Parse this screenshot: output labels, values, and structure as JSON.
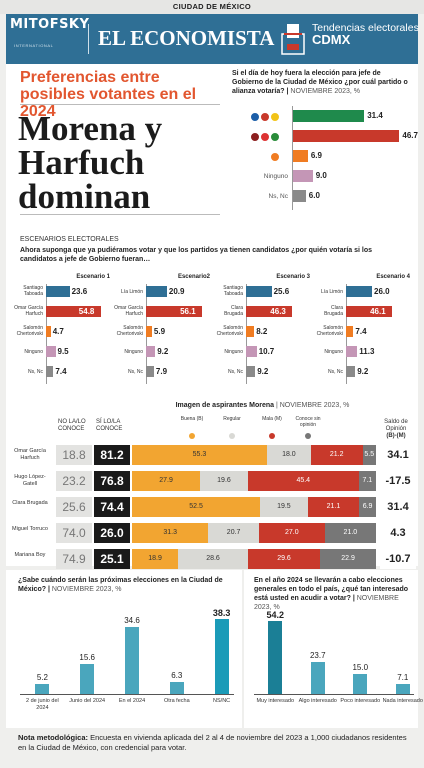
{
  "topbar": {
    "label": "CIUDAD DE MÉXICO"
  },
  "header": {
    "logo_left": "MITOFSKY",
    "logo_left_sub": "INTERNATIONAL",
    "logo_right": "EL ECONOMISTA",
    "title_line1": "Tendencias electorales",
    "title_line2": "CDMX"
  },
  "main": {
    "subtitle": "Preferencias entre posibles votantes en el 2024",
    "headline_lines": [
      "Morena y",
      "Harfuch",
      "dominan"
    ]
  },
  "chart_data": [
    {
      "type": "bar",
      "id": "partido",
      "question": "Si el día de hoy fuera la elección para jefe de Gobierno de la Ciudad de México ¿por cuál partido o alianza votaría?",
      "source": "NOVIEMBRE 2023, %",
      "categories": [
        "PAN-PRI-PRD",
        "Morena-PT-PVEM",
        "MC",
        "Ninguno",
        "Ns, Nc"
      ],
      "values": [
        31.4,
        46.7,
        6.9,
        9.0,
        6.0
      ],
      "colors": [
        "#1f8a4c",
        "#c8392b",
        "#f07c22",
        "#c496b6",
        "#8a8a8a"
      ]
    },
    {
      "type": "bar",
      "id": "escenarios",
      "section": "ESCENARIOS ELECTORALES",
      "question": "Ahora suponga que ya pudiéramos votar y que los partidos ya tienen candidatos ¿por quién votaría si los candidatos a jefe de Gobierno fueran…",
      "scenarios": [
        {
          "title": "Escenario 1",
          "categories": [
            "Santiago Taboada",
            "Omar García Harfuch",
            "Salomón Chertorivski",
            "Ninguno",
            "Ns, Nc"
          ],
          "values": [
            23.6,
            54.8,
            4.7,
            9.5,
            7.4
          ]
        },
        {
          "title": "Escenario2",
          "categories": [
            "Lía Limón",
            "Omar García Harfuch",
            "Salomón Chertorivski",
            "Ninguno",
            "Ns, Nc"
          ],
          "values": [
            20.9,
            56.1,
            5.9,
            9.2,
            7.9
          ]
        },
        {
          "title": "Escenario 3",
          "categories": [
            "Santiago Taboada",
            "Clara Brugada",
            "Salomón Chertorivski",
            "Ninguno",
            "Ns, Nc"
          ],
          "values": [
            25.6,
            46.3,
            8.2,
            10.7,
            9.2
          ]
        },
        {
          "title": "Escenario 4",
          "categories": [
            "Lía Limón",
            "Clara Brugada",
            "Salomón Chertorivski",
            "Ninguno",
            "Ns, Nc"
          ],
          "values": [
            26.0,
            46.1,
            7.4,
            11.3,
            9.2
          ]
        }
      ]
    },
    {
      "type": "table",
      "id": "imagen",
      "title": "Imagen de aspirantes Morena",
      "source": "NOVIEMBRE 2023, %",
      "col_nolo": "NO LA/LO CONOCE",
      "col_sile": "SÍ LO/LA CONOCE",
      "col_saldo": "Saldo de Opinión",
      "col_saldo_sub": "(B)-(M)",
      "legend": [
        {
          "name": "Buena",
          "code": "(B)",
          "color": "#f2a531"
        },
        {
          "name": "Regular",
          "code": "",
          "color": "#d9d9d5"
        },
        {
          "name": "Mala",
          "code": "(M)",
          "color": "#c8392b"
        },
        {
          "name": "Conoce sin opinión",
          "code": "",
          "color": "#777777"
        }
      ],
      "rows": [
        {
          "name": "Omar García Harfuch",
          "nolo": "18.8",
          "sile": "81.2",
          "buena": 55.3,
          "regular": 18.0,
          "mala": 21.2,
          "sin": 5.5,
          "saldo": "34.1"
        },
        {
          "name": "Hugo López-Gatell",
          "nolo": "23.2",
          "sile": "76.8",
          "buena": 27.9,
          "regular": 19.6,
          "mala": 45.4,
          "sin": 7.1,
          "saldo": "-17.5"
        },
        {
          "name": "Clara Brugada",
          "nolo": "25.6",
          "sile": "74.4",
          "buena": 52.5,
          "regular": 19.5,
          "mala": 21.1,
          "sin": 6.9,
          "saldo": "31.4"
        },
        {
          "name": "Miguel Torruco",
          "nolo": "74.0",
          "sile": "26.0",
          "buena": 31.3,
          "regular": 20.7,
          "mala": 27.0,
          "sin": 21.0,
          "saldo": "4.3"
        },
        {
          "name": "Mariana Boy",
          "nolo": "74.9",
          "sile": "25.1",
          "buena": 18.9,
          "regular": 28.6,
          "mala": 29.6,
          "sin": 22.9,
          "saldo": "-10.7"
        }
      ]
    },
    {
      "type": "bar",
      "id": "cuando",
      "question": "¿Sabe cuándo serán las próximas elecciones en la Ciudad de México?",
      "source": "NOVIEMBRE 2023, %",
      "categories": [
        "2 de junio del 2024",
        "Junio del 2024",
        "En el 2024",
        "Otra fecha",
        "NS/NC"
      ],
      "values": [
        5.2,
        15.6,
        34.6,
        6.3,
        38.3
      ],
      "color": "#4aa6bd",
      "highlight": "#1b9bb8"
    },
    {
      "type": "bar",
      "id": "interes",
      "question": "En el año 2024 se llevarán a cabo elecciones generales en todo el país, ¿qué tan interesado está usted en acudir a votar?",
      "source": "NOVIEMBRE 2023, %",
      "categories": [
        "Muy interesado",
        "Algo interesado",
        "Poco interesado",
        "Nada interesado"
      ],
      "values": [
        54.2,
        23.7,
        15.0,
        7.1
      ],
      "color": "#4aa6bd",
      "highlight": "#1b7f96"
    }
  ],
  "note": {
    "label": "Nota metodológica:",
    "text": "Encuesta en vivienda aplicada del 2 al 4 de noviembre del 2023 a 1,000 ciudadanos residentes en la Ciudad de México, con credencial para votar."
  }
}
